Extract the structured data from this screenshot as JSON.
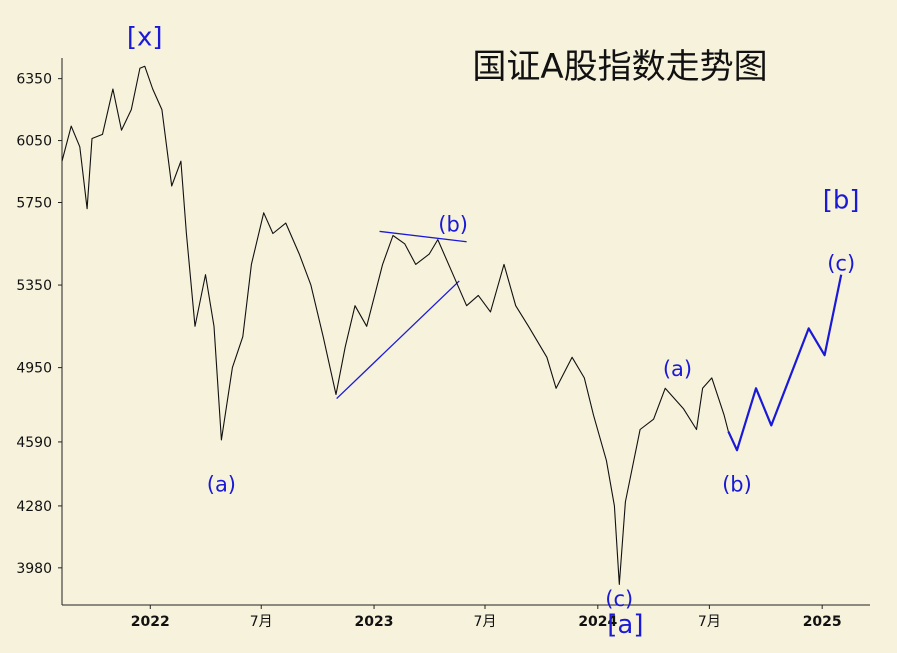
{
  "chart_data": {
    "type": "line",
    "title": "国证A股指数走势图",
    "xlabel": "",
    "ylabel": "",
    "yticks": [
      3980,
      4280,
      4590,
      4950,
      5350,
      5750,
      6050,
      6350
    ],
    "ylim": [
      3800,
      6450
    ],
    "xticks": [
      {
        "label": "2022",
        "date": "2022-01-01",
        "bold": true
      },
      {
        "label": "7月",
        "date": "2022-07-01",
        "bold": false
      },
      {
        "label": "2023",
        "date": "2023-01-01",
        "bold": true
      },
      {
        "label": "7月",
        "date": "2023-07-01",
        "bold": false
      },
      {
        "label": "2024",
        "date": "2024-01-01",
        "bold": true
      },
      {
        "label": "7月",
        "date": "2024-07-01",
        "bold": false
      },
      {
        "label": "2025",
        "date": "2025-01-01",
        "bold": true
      }
    ],
    "xlim": [
      "2021-08-10",
      "2025-03-20"
    ],
    "grid": false,
    "series": [
      {
        "values": [
          [
            "2021-08-10",
            5950
          ],
          [
            "2021-08-25",
            6120
          ],
          [
            "2021-09-08",
            6020
          ],
          [
            "2021-09-20",
            5720
          ],
          [
            "2021-09-28",
            6060
          ],
          [
            "2021-10-15",
            6080
          ],
          [
            "2021-11-01",
            6300
          ],
          [
            "2021-11-15",
            6100
          ],
          [
            "2021-12-01",
            6200
          ],
          [
            "2021-12-15",
            6400
          ],
          [
            "2021-12-23",
            6410
          ],
          [
            "2022-01-05",
            6300
          ],
          [
            "2022-01-20",
            6200
          ],
          [
            "2022-02-05",
            5830
          ],
          [
            "2022-02-20",
            5950
          ],
          [
            "2022-03-01",
            5600
          ],
          [
            "2022-03-15",
            5150
          ],
          [
            "2022-04-01",
            5400
          ],
          [
            "2022-04-15",
            5150
          ],
          [
            "2022-04-27",
            4600
          ],
          [
            "2022-05-15",
            4950
          ],
          [
            "2022-06-01",
            5100
          ],
          [
            "2022-06-15",
            5450
          ],
          [
            "2022-07-05",
            5700
          ],
          [
            "2022-07-20",
            5600
          ],
          [
            "2022-08-10",
            5650
          ],
          [
            "2022-09-01",
            5500
          ],
          [
            "2022-09-20",
            5350
          ],
          [
            "2022-10-10",
            5100
          ],
          [
            "2022-10-31",
            4820
          ],
          [
            "2022-11-15",
            5050
          ],
          [
            "2022-12-01",
            5250
          ],
          [
            "2022-12-20",
            5150
          ],
          [
            "2023-01-15",
            5450
          ],
          [
            "2023-02-01",
            5590
          ],
          [
            "2023-02-20",
            5550
          ],
          [
            "2023-03-10",
            5450
          ],
          [
            "2023-04-01",
            5500
          ],
          [
            "2023-04-15",
            5570
          ],
          [
            "2023-05-10",
            5400
          ],
          [
            "2023-06-01",
            5250
          ],
          [
            "2023-06-20",
            5300
          ],
          [
            "2023-07-10",
            5220
          ],
          [
            "2023-08-01",
            5450
          ],
          [
            "2023-08-20",
            5250
          ],
          [
            "2023-09-10",
            5150
          ],
          [
            "2023-10-10",
            5000
          ],
          [
            "2023-10-25",
            4850
          ],
          [
            "2023-11-20",
            5000
          ],
          [
            "2023-12-10",
            4900
          ],
          [
            "2023-12-25",
            4720
          ],
          [
            "2024-01-15",
            4500
          ],
          [
            "2024-01-28",
            4280
          ],
          [
            "2024-02-05",
            3900
          ],
          [
            "2024-02-15",
            4300
          ],
          [
            "2024-03-10",
            4650
          ],
          [
            "2024-04-01",
            4700
          ],
          [
            "2024-04-20",
            4850
          ],
          [
            "2024-05-20",
            4750
          ],
          [
            "2024-06-10",
            4650
          ],
          [
            "2024-06-20",
            4850
          ],
          [
            "2024-07-05",
            4900
          ],
          [
            "2024-07-25",
            4720
          ],
          [
            "2024-08-01",
            4640
          ]
        ]
      },
      {
        "values": [
          [
            "2024-08-01",
            4640
          ],
          [
            "2024-08-15",
            4550
          ],
          [
            "2024-09-15",
            4850
          ],
          [
            "2024-10-10",
            4670
          ],
          [
            "2024-12-10",
            5140
          ],
          [
            "2025-01-05",
            5010
          ],
          [
            "2025-02-01",
            5400
          ]
        ]
      }
    ],
    "trend_lines": [
      [
        [
          "2022-11-01",
          4800
        ],
        [
          "2023-05-20",
          5370
        ]
      ],
      [
        [
          "2023-01-10",
          5610
        ],
        [
          "2023-06-01",
          5560
        ]
      ]
    ],
    "annotations": [
      {
        "text": "[x]",
        "date": "2021-12-23",
        "value": 6510,
        "size": "big"
      },
      {
        "text": "(a)",
        "date": "2022-04-27",
        "value": 4350,
        "size": "normal"
      },
      {
        "text": "(b)",
        "date": "2023-05-10",
        "value": 5610,
        "size": "normal"
      },
      {
        "text": "(a)",
        "date": "2024-05-10",
        "value": 4910,
        "size": "normal"
      },
      {
        "text": "(b)",
        "date": "2024-08-15",
        "value": 4350,
        "size": "normal"
      },
      {
        "text": "(c)",
        "date": "2024-02-05",
        "value": 3795,
        "size": "normal"
      },
      {
        "text": "[a]",
        "date": "2024-02-15",
        "value": 3665,
        "size": "big"
      },
      {
        "text": "[b]",
        "date": "2025-02-01",
        "value": 5720,
        "size": "big"
      },
      {
        "text": "(c)",
        "date": "2025-02-01",
        "value": 5420,
        "size": "normal"
      }
    ],
    "colors": {
      "background": "#f7f2dc",
      "price_line": "#111111",
      "projection": "#1a1ad6",
      "labels": "#1a1ad6",
      "axis": "#222222"
    }
  }
}
